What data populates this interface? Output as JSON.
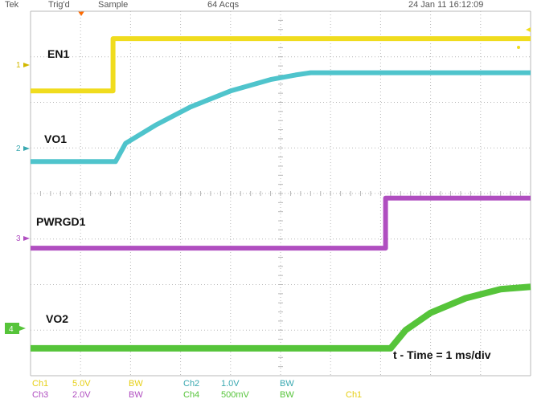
{
  "header": {
    "trigger": "Tek",
    "mode": "Trig'd",
    "acquisition": "Sample",
    "record": "64 Acqs",
    "datetime": "24 Jan 11 16:12:09"
  },
  "annotation": "t - Time = 1 ms/div",
  "colors": {
    "ch1": "#f0dc1e",
    "ch2": "#4fc4cc",
    "ch3": "#b04ec0",
    "ch4": "#56c43a",
    "trigger_marker": "#ff6a00",
    "grid": "#b8b8b8"
  },
  "channels": [
    {
      "id": "1",
      "name": "EN1",
      "scale": "5.0V",
      "color": "#f0dc1e"
    },
    {
      "id": "2",
      "name": "VO1",
      "scale": "1.0V",
      "color": "#4fc4cc"
    },
    {
      "id": "3",
      "name": "PWRGD1",
      "scale": "2.0V",
      "color": "#b04ec0"
    },
    {
      "id": "4",
      "name": "VO2",
      "scale": "500mV",
      "color": "#56c43a"
    }
  ],
  "footer": {
    "ch1_label": "Ch1",
    "ch1_scale": "5.0V",
    "ch1_bw": "BW",
    "ch2_label": "Ch2",
    "ch2_scale": "1.0V",
    "ch2_bw": "BW",
    "ch3_label": "Ch3",
    "ch3_scale": "2.0V",
    "ch3_bw": "BW",
    "ch4_label": "Ch4",
    "ch4_scale": "500mV",
    "ch4_bw": "BW",
    "trig_src": "Ch1"
  },
  "chart_data": {
    "type": "line",
    "time_per_div": "1 ms/div",
    "x_divisions": 10,
    "y_divisions": 8,
    "grid": true,
    "series": [
      {
        "name": "EN1",
        "t_ms": [
          0,
          1.65,
          1.65,
          10
        ],
        "y_div": [
          5.65,
          5.65,
          6.8,
          6.8
        ]
      },
      {
        "name": "VO1",
        "t_ms": [
          0,
          1.7,
          1.9,
          2.5,
          3.2,
          4.0,
          4.8,
          5.3,
          5.6,
          10
        ],
        "y_div": [
          4.1,
          4.1,
          4.5,
          4.9,
          5.3,
          5.65,
          5.9,
          6.0,
          6.05,
          6.05
        ]
      },
      {
        "name": "PWRGD1",
        "t_ms": [
          0,
          7.1,
          7.1,
          10
        ],
        "y_div": [
          2.2,
          2.2,
          3.3,
          3.3
        ]
      },
      {
        "name": "VO2",
        "t_ms": [
          0,
          7.2,
          7.5,
          8.0,
          8.7,
          9.4,
          10
        ],
        "y_div": [
          0.0,
          0.0,
          0.4,
          0.78,
          1.1,
          1.3,
          1.35
        ]
      }
    ]
  }
}
